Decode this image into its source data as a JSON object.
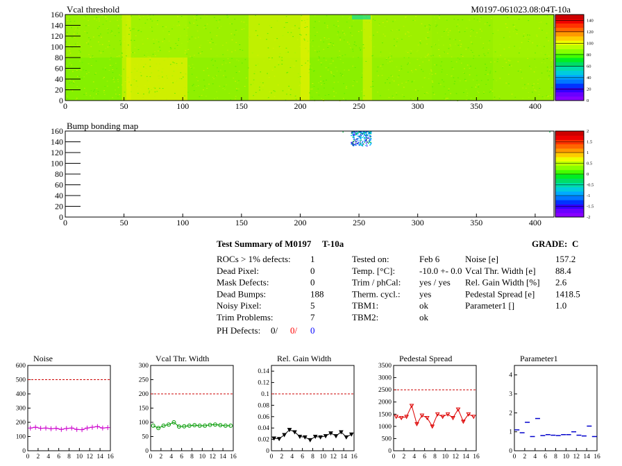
{
  "header": {
    "map1_title": "Vcal threshold",
    "module_id": "M0197-061023.08:04T-10a",
    "map2_title": "Bump bonding map"
  },
  "colors": {
    "map_background": "#7df200",
    "map_stripe_light": "#b8f000",
    "map_stripe_yellow": "#e8f000",
    "noise": "#cc00cc",
    "vcal_width": "#009900",
    "gain_width": "#000000",
    "pedestal": "#dd0000",
    "parameter1": "#0000cc",
    "limit_line": "#cc0000",
    "ph_defects_b": "#ff0000",
    "ph_defects_c": "#0000ff"
  },
  "maps": {
    "x_ticks": [
      "0",
      "50",
      "100",
      "150",
      "200",
      "250",
      "300",
      "350",
      "400"
    ],
    "y_ticks": [
      "0",
      "20",
      "40",
      "60",
      "80",
      "100",
      "120",
      "140",
      "160"
    ],
    "xlim": [
      0,
      416
    ],
    "ylim": [
      0,
      160
    ],
    "threshold_scale": {
      "ticks": [
        "0",
        "20",
        "40",
        "60",
        "80",
        "100",
        "120",
        "140"
      ],
      "range": [
        0,
        150
      ]
    },
    "bump_scale": {
      "ticks": [
        "-2",
        "-1.5",
        "-1",
        "-0.5",
        "0",
        "0.5",
        "1",
        "1.5",
        "2"
      ],
      "range": [
        -2,
        2
      ]
    },
    "bump_cluster": {
      "x_range": [
        243,
        260
      ],
      "y_range": [
        133,
        160
      ]
    }
  },
  "summary": {
    "title": "Test Summary of M0197",
    "tag": "T-10a",
    "grade_label": "GRADE:",
    "grade": "C",
    "col1": [
      {
        "label": "ROCs > 1% defects:",
        "value": "1"
      },
      {
        "label": "Dead Pixel:",
        "value": "0"
      },
      {
        "label": "Mask Defects:",
        "value": "0"
      },
      {
        "label": "Dead Bumps:",
        "value": "188"
      },
      {
        "label": "Noisy Pixel:",
        "value": "5"
      },
      {
        "label": "Trim Problems:",
        "value": "7"
      }
    ],
    "ph_label": "PH Defects:",
    "ph_a": "0/",
    "ph_b": "0/",
    "ph_c": "0",
    "col2": [
      {
        "label": "Tested on:",
        "value": "Feb 6"
      },
      {
        "label": "Temp. [°C]:",
        "value": "-10.0 +- 0.0"
      },
      {
        "label": "Trim / phCal:",
        "value": "yes / yes"
      },
      {
        "label": "Therm. cycl.:",
        "value": "yes"
      },
      {
        "label": "TBM1:",
        "value": "ok"
      },
      {
        "label": "TBM2:",
        "value": "ok"
      }
    ],
    "col3": [
      {
        "label": "Noise [e]",
        "value": "157.2"
      },
      {
        "label": "Vcal Thr. Width [e]",
        "value": "88.4"
      },
      {
        "label": "Rel. Gain Width [%]",
        "value": "2.6"
      },
      {
        "label": "Pedestal Spread [e]",
        "value": "1418.5"
      },
      {
        "label": "Parameter1 []",
        "value": "1.0"
      }
    ]
  },
  "chart_data": [
    {
      "type": "line",
      "title": "Noise",
      "x": [
        0,
        1,
        2,
        3,
        4,
        5,
        6,
        7,
        8,
        9,
        10,
        11,
        12,
        13,
        14,
        15
      ],
      "values": [
        160,
        165,
        158,
        160,
        155,
        158,
        150,
        157,
        160,
        150,
        148,
        160,
        165,
        170,
        160,
        163
      ],
      "xlim": [
        0,
        16
      ],
      "ylim": [
        0,
        600
      ],
      "yticks": [
        "0",
        "100",
        "200",
        "300",
        "400",
        "500",
        "600"
      ],
      "xticks": [
        "0",
        "2",
        "4",
        "6",
        "8",
        "10",
        "12",
        "14",
        "16"
      ],
      "limit": 500
    },
    {
      "type": "line",
      "title": "Vcal Thr. Width",
      "x": [
        0,
        1,
        2,
        3,
        4,
        5,
        6,
        7,
        8,
        9,
        10,
        11,
        12,
        13,
        14,
        15
      ],
      "values": [
        88,
        80,
        88,
        92,
        100,
        85,
        86,
        88,
        90,
        88,
        88,
        91,
        92,
        90,
        88,
        88
      ],
      "xlim": [
        0,
        16
      ],
      "ylim": [
        0,
        300
      ],
      "yticks": [
        "0",
        "50",
        "100",
        "150",
        "200",
        "250",
        "300"
      ],
      "xticks": [
        "0",
        "2",
        "4",
        "6",
        "8",
        "10",
        "12",
        "14",
        "16"
      ],
      "limit": 200
    },
    {
      "type": "line",
      "title": "Rel. Gain Width",
      "x": [
        0,
        1,
        2,
        3,
        4,
        5,
        6,
        7,
        8,
        9,
        10,
        11,
        12,
        13,
        14,
        15
      ],
      "values": [
        0.022,
        0.021,
        0.028,
        0.037,
        0.033,
        0.025,
        0.024,
        0.019,
        0.025,
        0.024,
        0.026,
        0.031,
        0.026,
        0.033,
        0.024,
        0.029
      ],
      "xlim": [
        0,
        16
      ],
      "ylim": [
        0,
        0.15
      ],
      "yticks": [
        "0",
        "0.02",
        "0.04",
        "0.06",
        "0.08",
        "0.1",
        "0.12",
        "0.14"
      ],
      "xticks": [
        "0",
        "2",
        "4",
        "6",
        "8",
        "10",
        "12",
        "14",
        "16"
      ],
      "limit": 0.1
    },
    {
      "type": "line",
      "title": "Pedestal Spread",
      "x": [
        0,
        1,
        2,
        3,
        4,
        5,
        6,
        7,
        8,
        9,
        10,
        11,
        12,
        13,
        14,
        15
      ],
      "values": [
        1400,
        1350,
        1400,
        1850,
        1100,
        1450,
        1350,
        1000,
        1500,
        1400,
        1500,
        1350,
        1700,
        1200,
        1500,
        1400
      ],
      "xlim": [
        0,
        16
      ],
      "ylim": [
        0,
        3500
      ],
      "yticks": [
        "0",
        "500",
        "1000",
        "1500",
        "2000",
        "2500",
        "3000",
        "3500"
      ],
      "xticks": [
        "0",
        "2",
        "4",
        "6",
        "8",
        "10",
        "12",
        "14",
        "16"
      ],
      "limit": 2500
    },
    {
      "type": "scatter",
      "title": "Parameter1",
      "x": [
        0,
        1,
        2,
        3,
        4,
        5,
        6,
        7,
        8,
        9,
        10,
        11,
        12,
        13,
        14,
        15
      ],
      "values": [
        1.1,
        0.95,
        1.5,
        0.75,
        1.7,
        0.8,
        0.85,
        0.82,
        0.8,
        0.85,
        0.85,
        1.0,
        0.82,
        0.78,
        1.3,
        0.75
      ],
      "xlim": [
        0,
        16
      ],
      "ylim": [
        0,
        4.5
      ],
      "yticks": [
        "0",
        "1",
        "2",
        "3",
        "4"
      ],
      "xticks": [
        "0",
        "2",
        "4",
        "6",
        "8",
        "10",
        "12",
        "14",
        "16"
      ],
      "limit": null
    }
  ]
}
